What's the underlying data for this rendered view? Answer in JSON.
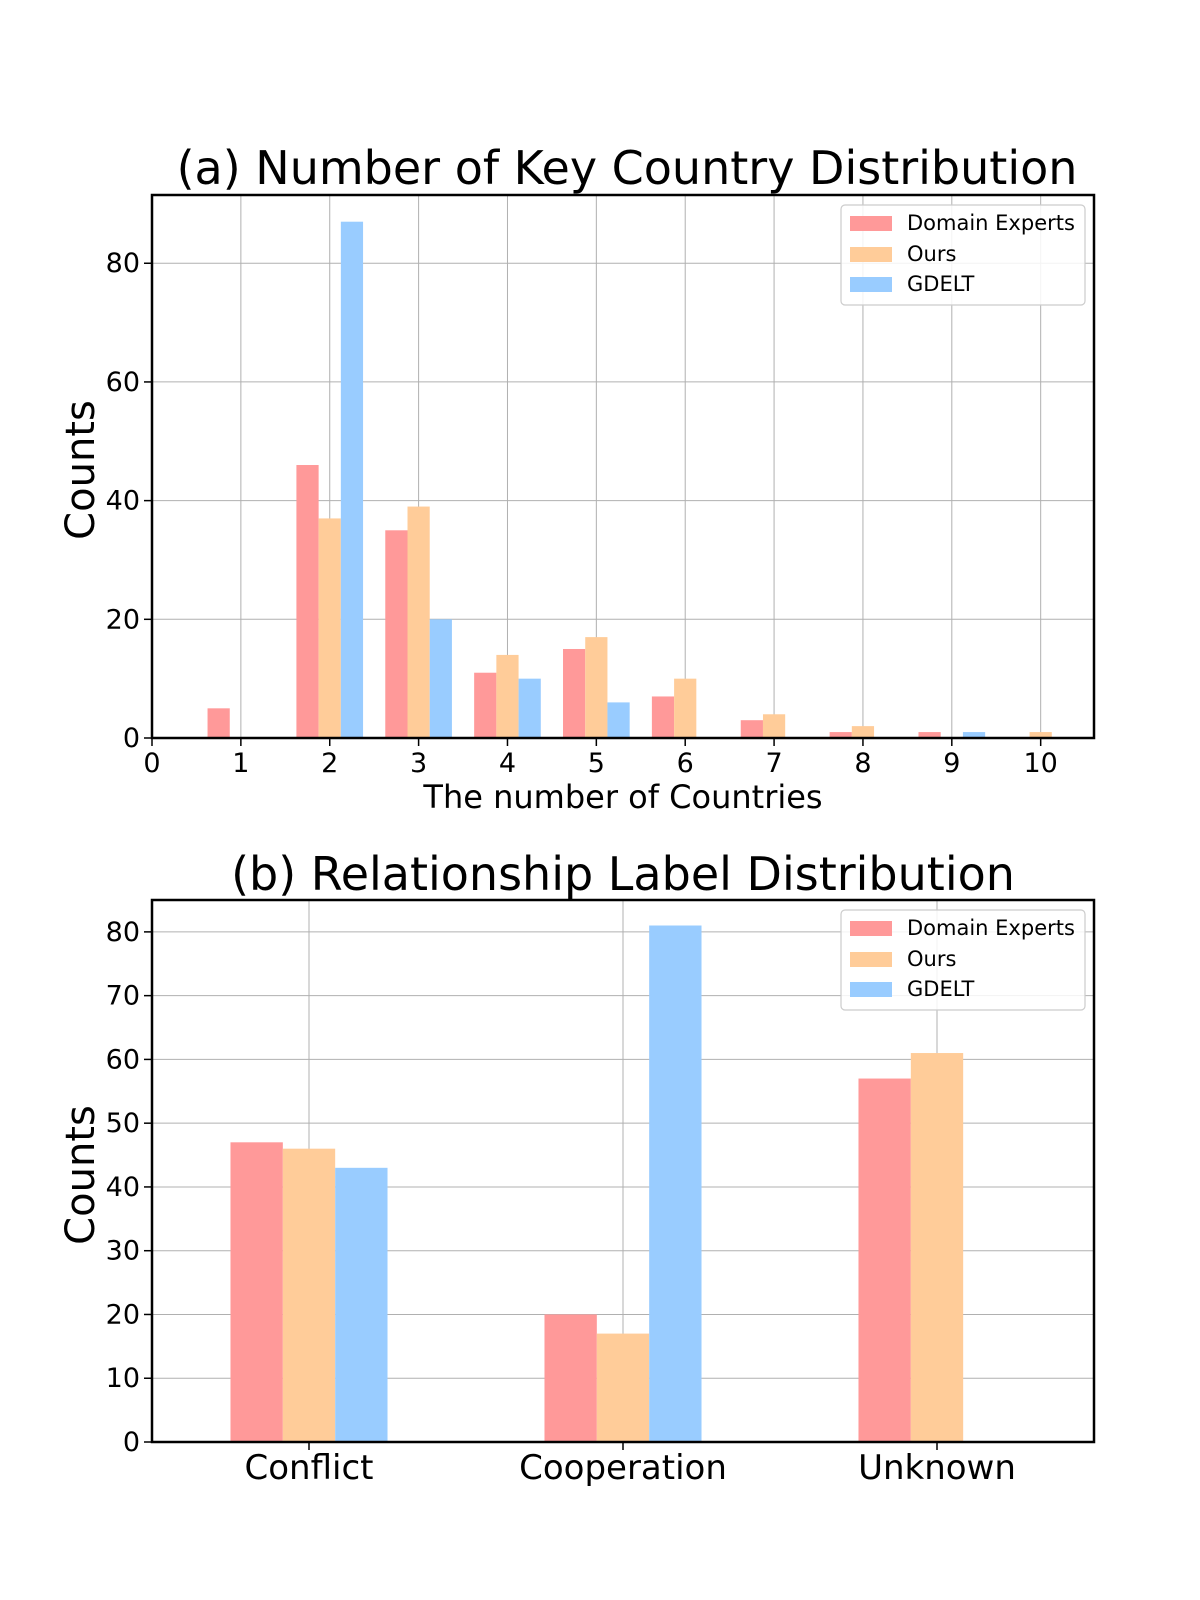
{
  "chart_data": [
    {
      "type": "bar",
      "title": "(a) Number of Key Country Distribution",
      "xlabel": "The number of Countries",
      "ylabel": "Counts",
      "xlim": [
        0,
        10.6
      ],
      "ylim": [
        0,
        91.5
      ],
      "x_ticks": [
        "0",
        "1",
        "2",
        "3",
        "4",
        "5",
        "6",
        "7",
        "8",
        "9",
        "10"
      ],
      "y_ticks": [
        "0",
        "20",
        "40",
        "60",
        "80"
      ],
      "grid": true,
      "legend_position": "top-right",
      "categories": [
        1,
        2,
        3,
        4,
        5,
        6,
        7,
        8,
        9,
        10
      ],
      "series": [
        {
          "name": "Domain Experts",
          "color": "#ff9999",
          "values": [
            5,
            46,
            35,
            11,
            15,
            7,
            3,
            1,
            1,
            0
          ]
        },
        {
          "name": "Ours",
          "color": "#ffcc99",
          "values": [
            0,
            37,
            39,
            14,
            17,
            10,
            4,
            2,
            0,
            1
          ]
        },
        {
          "name": "GDELT",
          "color": "#99ccff",
          "values": [
            0,
            87,
            20,
            10,
            6,
            0,
            0,
            0,
            1,
            0
          ]
        }
      ]
    },
    {
      "type": "bar",
      "title": "(b) Relationship Label Distribution",
      "xlabel": "",
      "ylabel": "Counts",
      "ylim": [
        0,
        85
      ],
      "y_ticks": [
        "0",
        "10",
        "20",
        "30",
        "40",
        "50",
        "60",
        "70",
        "80"
      ],
      "grid": true,
      "legend_position": "top-right",
      "categories": [
        "Conflict",
        "Cooperation",
        "Unknown"
      ],
      "series": [
        {
          "name": "Domain Experts",
          "color": "#ff9999",
          "values": [
            47,
            20,
            57
          ]
        },
        {
          "name": "Ours",
          "color": "#ffcc99",
          "values": [
            46,
            17,
            61
          ]
        },
        {
          "name": "GDELT",
          "color": "#99ccff",
          "values": [
            43,
            81,
            0
          ]
        }
      ]
    }
  ]
}
